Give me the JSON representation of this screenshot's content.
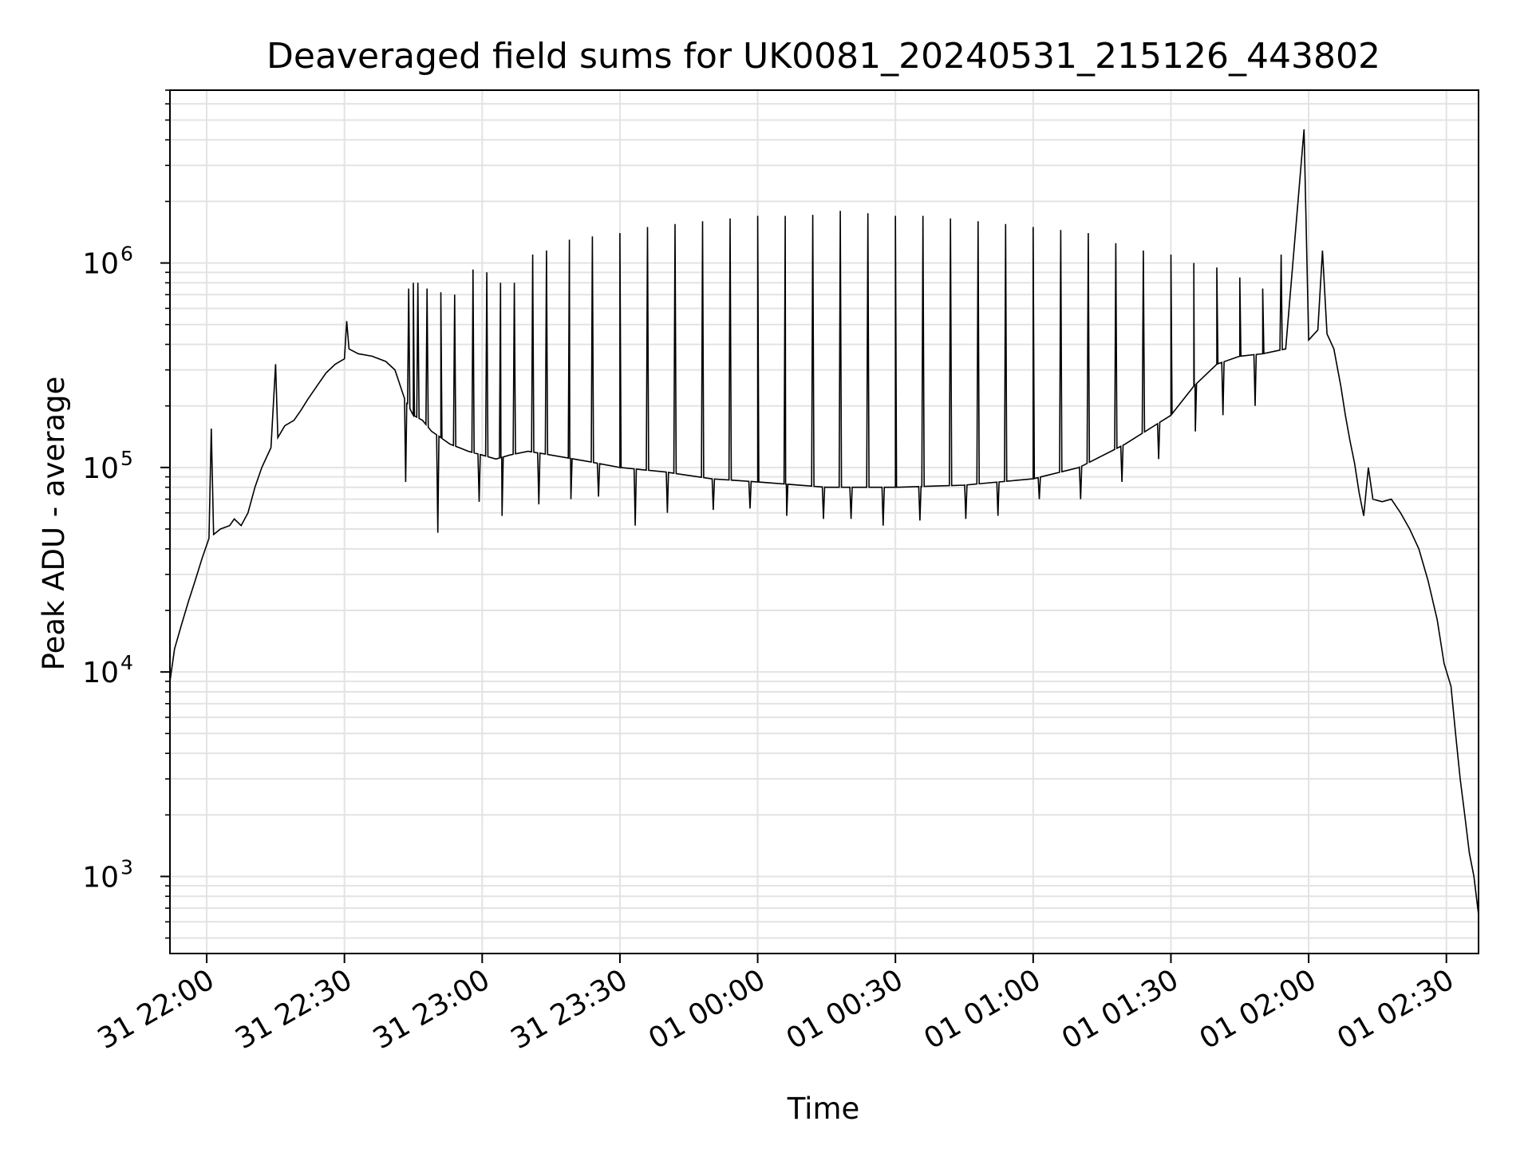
{
  "chart_data": {
    "type": "line",
    "title": "Deaveraged field sums for UK0081_20240531_215126_443802",
    "xlabel": "Time",
    "ylabel": "Peak ADU - average",
    "x_range": [
      "2024-05-31 21:52:00",
      "2024-06-01 02:37:00"
    ],
    "y_scale": "log",
    "ylim": [
      420,
      7000000
    ],
    "grid": true,
    "grid_minor_y": true,
    "line_color": "#000000",
    "grid_color": "#e3e3e3",
    "x_ticks": [
      {
        "label": "31 22:00",
        "time": "2024-05-31 22:00"
      },
      {
        "label": "31 22:30",
        "time": "2024-05-31 22:30"
      },
      {
        "label": "31 23:00",
        "time": "2024-05-31 23:00"
      },
      {
        "label": "31 23:30",
        "time": "2024-05-31 23:30"
      },
      {
        "label": "01 00:00",
        "time": "2024-06-01 00:00"
      },
      {
        "label": "01 00:30",
        "time": "2024-06-01 00:30"
      },
      {
        "label": "01 01:00",
        "time": "2024-06-01 01:00"
      },
      {
        "label": "01 01:30",
        "time": "2024-06-01 01:30"
      },
      {
        "label": "01 02:00",
        "time": "2024-06-01 02:00"
      },
      {
        "label": "01 02:30",
        "time": "2024-06-01 02:30"
      }
    ],
    "y_ticks": [
      {
        "value": 1000,
        "base": "10",
        "exp": "3"
      },
      {
        "value": 10000,
        "base": "10",
        "exp": "4"
      },
      {
        "value": 100000,
        "base": "10",
        "exp": "5"
      },
      {
        "value": 1000000,
        "base": "10",
        "exp": "6"
      }
    ],
    "series": [
      {
        "points": [
          [
            "2024-05-31 21:52:00",
            9000
          ],
          [
            "2024-05-31 21:53:00",
            13000
          ],
          [
            "2024-05-31 21:54:30",
            17000
          ],
          [
            "2024-05-31 21:56:00",
            22000
          ],
          [
            "2024-05-31 21:57:30",
            28000
          ],
          [
            "2024-05-31 21:59:00",
            36000
          ],
          [
            "2024-05-31 22:00:30",
            45000
          ],
          [
            "2024-05-31 22:01:00",
            155000
          ],
          [
            "2024-05-31 22:01:30",
            47000
          ],
          [
            "2024-05-31 22:03:00",
            50000
          ],
          [
            "2024-05-31 22:05:00",
            52000
          ],
          [
            "2024-05-31 22:06:00",
            56000
          ],
          [
            "2024-05-31 22:07:30",
            52000
          ],
          [
            "2024-05-31 22:09:00",
            60000
          ],
          [
            "2024-05-31 22:10:30",
            80000
          ],
          [
            "2024-05-31 22:12:00",
            100000
          ],
          [
            "2024-05-31 22:14:00",
            125000
          ],
          [
            "2024-05-31 22:15:00",
            320000
          ],
          [
            "2024-05-31 22:15:30",
            140000
          ],
          [
            "2024-05-31 22:17:00",
            160000
          ],
          [
            "2024-05-31 22:19:00",
            170000
          ],
          [
            "2024-05-31 22:20:30",
            190000
          ],
          [
            "2024-05-31 22:22:00",
            215000
          ],
          [
            "2024-05-31 22:24:00",
            250000
          ],
          [
            "2024-05-31 22:26:00",
            290000
          ],
          [
            "2024-05-31 22:28:00",
            320000
          ],
          [
            "2024-05-31 22:30:00",
            340000
          ],
          [
            "2024-05-31 22:30:30",
            520000
          ],
          [
            "2024-05-31 22:31:00",
            380000
          ],
          [
            "2024-05-31 22:33:00",
            360000
          ],
          [
            "2024-05-31 22:36:00",
            350000
          ],
          [
            "2024-05-31 22:39:00",
            330000
          ],
          [
            "2024-05-31 22:41:00",
            300000
          ],
          [
            "2024-05-31 22:43:00",
            220000
          ],
          [
            "2024-05-31 22:45:00",
            180000
          ],
          [
            "2024-05-31 22:47:00",
            170000
          ],
          [
            "2024-05-31 22:49:00",
            150000
          ],
          [
            "2024-05-31 22:51:00",
            140000
          ],
          [
            "2024-05-31 22:53:00",
            130000
          ],
          [
            "2024-05-31 22:55:00",
            125000
          ],
          [
            "2024-05-31 22:57:00",
            120000
          ],
          [
            "2024-05-31 23:00:00",
            115000
          ],
          [
            "2024-05-31 23:03:00",
            110000
          ],
          [
            "2024-05-31 23:06:00",
            115000
          ],
          [
            "2024-05-31 23:10:00",
            120000
          ],
          [
            "2024-05-31 23:15:00",
            115000
          ],
          [
            "2024-05-31 23:20:00",
            110000
          ],
          [
            "2024-05-31 23:25:00",
            105000
          ],
          [
            "2024-05-31 23:30:00",
            100000
          ],
          [
            "2024-05-31 23:40:00",
            95000
          ],
          [
            "2024-05-31 23:50:00",
            88000
          ],
          [
            "2024-06-01 00:00:00",
            85000
          ],
          [
            "2024-06-01 00:15:00",
            80000
          ],
          [
            "2024-06-01 00:30:00",
            80000
          ],
          [
            "2024-06-01 00:45:00",
            82000
          ],
          [
            "2024-06-01 01:00:00",
            88000
          ],
          [
            "2024-06-01 01:10:00",
            100000
          ],
          [
            "2024-06-01 01:20:00",
            130000
          ],
          [
            "2024-06-01 01:30:00",
            180000
          ],
          [
            "2024-06-01 01:35:00",
            250000
          ],
          [
            "2024-06-01 01:40:00",
            320000
          ],
          [
            "2024-06-01 01:45:00",
            350000
          ],
          [
            "2024-06-01 01:50:00",
            360000
          ],
          [
            "2024-06-01 01:55:00",
            380000
          ],
          [
            "2024-06-01 01:59:00",
            4500000
          ],
          [
            "2024-06-01 02:00:00",
            420000
          ],
          [
            "2024-06-01 02:02:00",
            470000
          ],
          [
            "2024-06-01 02:03:00",
            1150000
          ],
          [
            "2024-06-01 02:04:00",
            450000
          ],
          [
            "2024-06-01 02:05:30",
            380000
          ],
          [
            "2024-06-01 02:07:00",
            250000
          ],
          [
            "2024-06-01 02:08:00",
            180000
          ],
          [
            "2024-06-01 02:09:00",
            135000
          ],
          [
            "2024-06-01 02:10:00",
            105000
          ],
          [
            "2024-06-01 02:11:00",
            75000
          ],
          [
            "2024-06-01 02:12:00",
            58000
          ],
          [
            "2024-06-01 02:13:00",
            100000
          ],
          [
            "2024-06-01 02:14:00",
            70000
          ],
          [
            "2024-06-01 02:16:00",
            68000
          ],
          [
            "2024-06-01 02:18:00",
            70000
          ],
          [
            "2024-06-01 02:20:00",
            60000
          ],
          [
            "2024-06-01 02:22:00",
            50000
          ],
          [
            "2024-06-01 02:24:00",
            40000
          ],
          [
            "2024-06-01 02:26:00",
            28000
          ],
          [
            "2024-06-01 02:28:00",
            18000
          ],
          [
            "2024-06-01 02:29:30",
            11000
          ],
          [
            "2024-06-01 02:31:00",
            8500
          ],
          [
            "2024-06-01 02:32:00",
            5000
          ],
          [
            "2024-06-01 02:33:00",
            3000
          ],
          [
            "2024-06-01 02:34:00",
            2000
          ],
          [
            "2024-06-01 02:35:00",
            1300
          ],
          [
            "2024-06-01 02:36:00",
            1000
          ],
          [
            "2024-06-01 02:37:00",
            650
          ]
        ],
        "spikes_up": [
          [
            "2024-05-31 22:44:00",
            750000
          ],
          [
            "2024-05-31 22:45:00",
            800000
          ],
          [
            "2024-05-31 22:46:00",
            800000
          ],
          [
            "2024-05-31 22:48:00",
            750000
          ],
          [
            "2024-05-31 22:51:00",
            720000
          ],
          [
            "2024-05-31 22:54:00",
            700000
          ],
          [
            "2024-05-31 22:58:00",
            930000
          ],
          [
            "2024-05-31 23:01:00",
            900000
          ],
          [
            "2024-05-31 23:04:00",
            800000
          ],
          [
            "2024-05-31 23:07:00",
            800000
          ],
          [
            "2024-05-31 23:11:00",
            1100000
          ],
          [
            "2024-05-31 23:14:00",
            1150000
          ],
          [
            "2024-05-31 23:19:00",
            1300000
          ],
          [
            "2024-05-31 23:24:00",
            1350000
          ],
          [
            "2024-05-31 23:30:00",
            1400000
          ],
          [
            "2024-05-31 23:36:00",
            1500000
          ],
          [
            "2024-05-31 23:42:00",
            1550000
          ],
          [
            "2024-05-31 23:48:00",
            1600000
          ],
          [
            "2024-05-31 23:54:00",
            1650000
          ],
          [
            "2024-06-01 00:00:00",
            1700000
          ],
          [
            "2024-06-01 00:06:00",
            1700000
          ],
          [
            "2024-06-01 00:12:00",
            1720000
          ],
          [
            "2024-06-01 00:18:00",
            1800000
          ],
          [
            "2024-06-01 00:24:00",
            1750000
          ],
          [
            "2024-06-01 00:30:00",
            1700000
          ],
          [
            "2024-06-01 00:36:00",
            1700000
          ],
          [
            "2024-06-01 00:42:00",
            1650000
          ],
          [
            "2024-06-01 00:48:00",
            1600000
          ],
          [
            "2024-06-01 00:54:00",
            1550000
          ],
          [
            "2024-06-01 01:00:00",
            1500000
          ],
          [
            "2024-06-01 01:06:00",
            1450000
          ],
          [
            "2024-06-01 01:12:00",
            1400000
          ],
          [
            "2024-06-01 01:18:00",
            1250000
          ],
          [
            "2024-06-01 01:24:00",
            1150000
          ],
          [
            "2024-06-01 01:30:00",
            1100000
          ],
          [
            "2024-06-01 01:35:00",
            1000000
          ],
          [
            "2024-06-01 01:40:00",
            950000
          ],
          [
            "2024-06-01 01:45:00",
            850000
          ],
          [
            "2024-06-01 01:50:00",
            750000
          ],
          [
            "2024-06-01 01:54:00",
            1100000
          ]
        ],
        "spikes_down": [
          [
            "2024-05-31 22:43:00",
            85000
          ],
          [
            "2024-05-31 22:50:00",
            48000
          ],
          [
            "2024-05-31 22:59:00",
            68000
          ],
          [
            "2024-05-31 23:04:00",
            58000
          ],
          [
            "2024-05-31 23:12:00",
            66000
          ],
          [
            "2024-05-31 23:19:00",
            70000
          ],
          [
            "2024-05-31 23:25:00",
            72000
          ],
          [
            "2024-05-31 23:33:00",
            52000
          ],
          [
            "2024-05-31 23:40:00",
            60000
          ],
          [
            "2024-05-31 23:50:00",
            62000
          ],
          [
            "2024-05-31 23:58:00",
            63000
          ],
          [
            "2024-06-01 00:06:00",
            58000
          ],
          [
            "2024-06-01 00:14:00",
            56000
          ],
          [
            "2024-06-01 00:20:00",
            56000
          ],
          [
            "2024-06-01 00:27:00",
            52000
          ],
          [
            "2024-06-01 00:35:00",
            55000
          ],
          [
            "2024-06-01 00:45:00",
            56000
          ],
          [
            "2024-06-01 00:52:00",
            58000
          ],
          [
            "2024-06-01 01:01:00",
            70000
          ],
          [
            "2024-06-01 01:10:00",
            70000
          ],
          [
            "2024-06-01 01:19:00",
            85000
          ],
          [
            "2024-06-01 01:27:00",
            110000
          ],
          [
            "2024-06-01 01:35:00",
            150000
          ],
          [
            "2024-06-01 01:41:00",
            180000
          ],
          [
            "2024-06-01 01:48:00",
            200000
          ]
        ]
      }
    ]
  }
}
